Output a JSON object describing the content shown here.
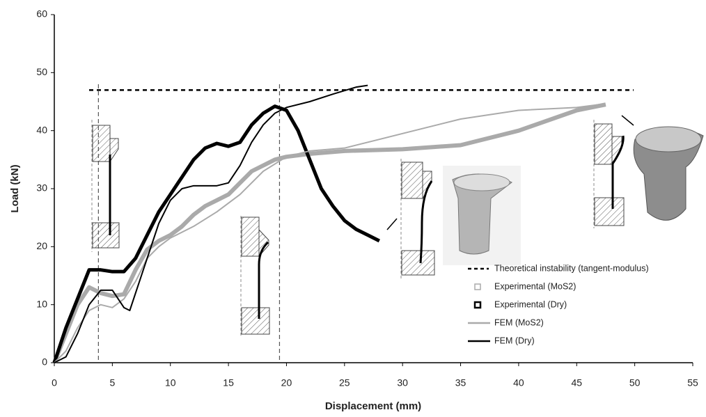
{
  "chart_data": {
    "type": "line",
    "xlabel": "Displacement (mm)",
    "ylabel": "Load (kN)",
    "xlim": [
      0,
      55
    ],
    "xticks": [
      0,
      5,
      10,
      15,
      20,
      25,
      30,
      35,
      40,
      45,
      50,
      55
    ],
    "ylim": [
      0,
      60
    ],
    "yticks": [
      0,
      10,
      20,
      30,
      40,
      50,
      60
    ],
    "reference_line": {
      "name": "Theoretical instability (tangent-modulus)",
      "value": 47,
      "color": "#000000"
    },
    "vlines": [
      3.8,
      19.4
    ],
    "series": [
      {
        "name": "Experimental (MoS2)",
        "color": "#aaaaaa",
        "line_width": 6,
        "marker": "square",
        "x": [
          0,
          1,
          2,
          3,
          4,
          5,
          6,
          7,
          8,
          9,
          10,
          11,
          12,
          13,
          14,
          15,
          16,
          17,
          18,
          19,
          20,
          22,
          25,
          30,
          35,
          40,
          45,
          47.5
        ],
        "values": [
          0,
          5,
          10,
          13,
          12,
          11.5,
          11.8,
          16,
          19.5,
          21,
          22,
          23.5,
          25.5,
          27,
          28,
          29,
          31,
          33,
          34,
          35,
          35.5,
          36,
          36.5,
          36.8,
          37.5,
          40,
          43.5,
          44.5
        ]
      },
      {
        "name": "Experimental (Dry)",
        "color": "#000000",
        "line_width": 5,
        "marker": "square",
        "x": [
          0,
          1,
          2,
          3,
          4,
          5,
          6,
          7,
          8,
          9,
          10,
          11,
          12,
          13,
          14,
          15,
          16,
          17,
          18,
          19,
          20,
          21,
          22,
          23,
          24,
          25,
          26,
          27,
          28
        ],
        "values": [
          0,
          6,
          11,
          16,
          16,
          15.7,
          15.7,
          18,
          22,
          26,
          29,
          32,
          35,
          37,
          37.8,
          37.3,
          38,
          41,
          43,
          44.2,
          43.5,
          40,
          35,
          30,
          27,
          24.5,
          23,
          22,
          21
        ]
      },
      {
        "name": "FEM (MoS2)",
        "color": "#aaaaaa",
        "line_width": 2,
        "marker": "line",
        "x": [
          0,
          1,
          2,
          3,
          4,
          5,
          6,
          7,
          8,
          9,
          10,
          12,
          14,
          16,
          18,
          20,
          22,
          25,
          28,
          30,
          35,
          40,
          45,
          47
        ],
        "values": [
          0,
          2,
          6,
          9,
          10,
          9.5,
          11,
          14,
          18,
          20,
          21.5,
          23.5,
          26,
          29,
          33,
          35.5,
          36.5,
          37,
          38.5,
          39.5,
          42,
          43.5,
          44,
          44.5
        ]
      },
      {
        "name": "FEM (Dry)",
        "color": "#000000",
        "line_width": 2,
        "marker": "line",
        "x": [
          0,
          1,
          2,
          3,
          4,
          5,
          6,
          6.5,
          7,
          8,
          9,
          10,
          11,
          12,
          13,
          14,
          15,
          16,
          17,
          18,
          19,
          20,
          22,
          24,
          26,
          27
        ],
        "values": [
          0,
          1,
          5,
          10,
          12.5,
          12.5,
          9.5,
          9,
          12,
          18,
          24,
          28,
          30,
          30.5,
          30.5,
          30.5,
          31,
          34,
          38,
          41,
          43,
          44,
          45,
          46.3,
          47.5,
          47.8
        ]
      }
    ]
  }
}
